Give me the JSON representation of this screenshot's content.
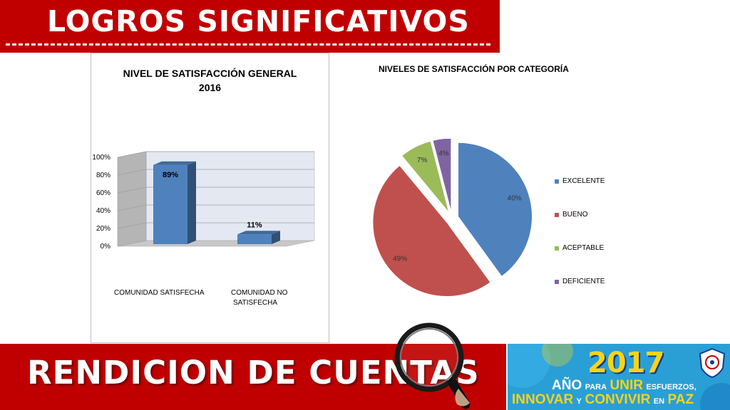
{
  "header": {
    "title": "LOGROS SIGNIFICATIVOS"
  },
  "footer": {
    "title": "RENDICION DE CUENTAS",
    "logo": {
      "year": "2017",
      "w1": "AÑO",
      "w2": "PARA",
      "w3": "UNIR",
      "w4": "ESFUERZOS,",
      "w5": "INNOVAR",
      "w6": "Y",
      "w7": "CONVIVIR",
      "w8": "EN",
      "w9": "PAZ"
    }
  },
  "colors": {
    "red_banner": "#c00000",
    "bar_fill": "#4f81bd",
    "logo_blue": "#2a9fd6",
    "logo_yellow": "#f7d417"
  },
  "chart_data": [
    {
      "type": "bar",
      "style": "3d-column",
      "title_line1": "NIVEL DE SATISFACCIÓN GENERAL",
      "title_line2": "2016",
      "categories": [
        "COMUNIDAD SATISFECHA",
        "COMUNIDAD  NO SATISFECHA"
      ],
      "category_lines": [
        [
          "COMUNIDAD SATISFECHA"
        ],
        [
          "COMUNIDAD  NO",
          "SATISFECHA"
        ]
      ],
      "values": [
        89,
        11
      ],
      "data_labels": [
        "89%",
        "11%"
      ],
      "y_ticks": [
        "0%",
        "20%",
        "40%",
        "60%",
        "80%",
        "100%"
      ],
      "ylim": [
        0,
        100
      ],
      "grid": true,
      "legend": "none"
    },
    {
      "type": "pie",
      "title": "NIVELES DE SATISFACCIÓN POR CATEGORÍA",
      "categories": [
        "EXCELENTE",
        "BUENO",
        "ACEPTABLE",
        "DEFICIENTE"
      ],
      "values": [
        40,
        49,
        7,
        4
      ],
      "data_labels": [
        "40%",
        "49%",
        "7%",
        "4%"
      ],
      "colors": [
        "#4f81bd",
        "#c0504d",
        "#9bbb59",
        "#8064a2"
      ],
      "exploded": true,
      "legend": "right"
    }
  ]
}
